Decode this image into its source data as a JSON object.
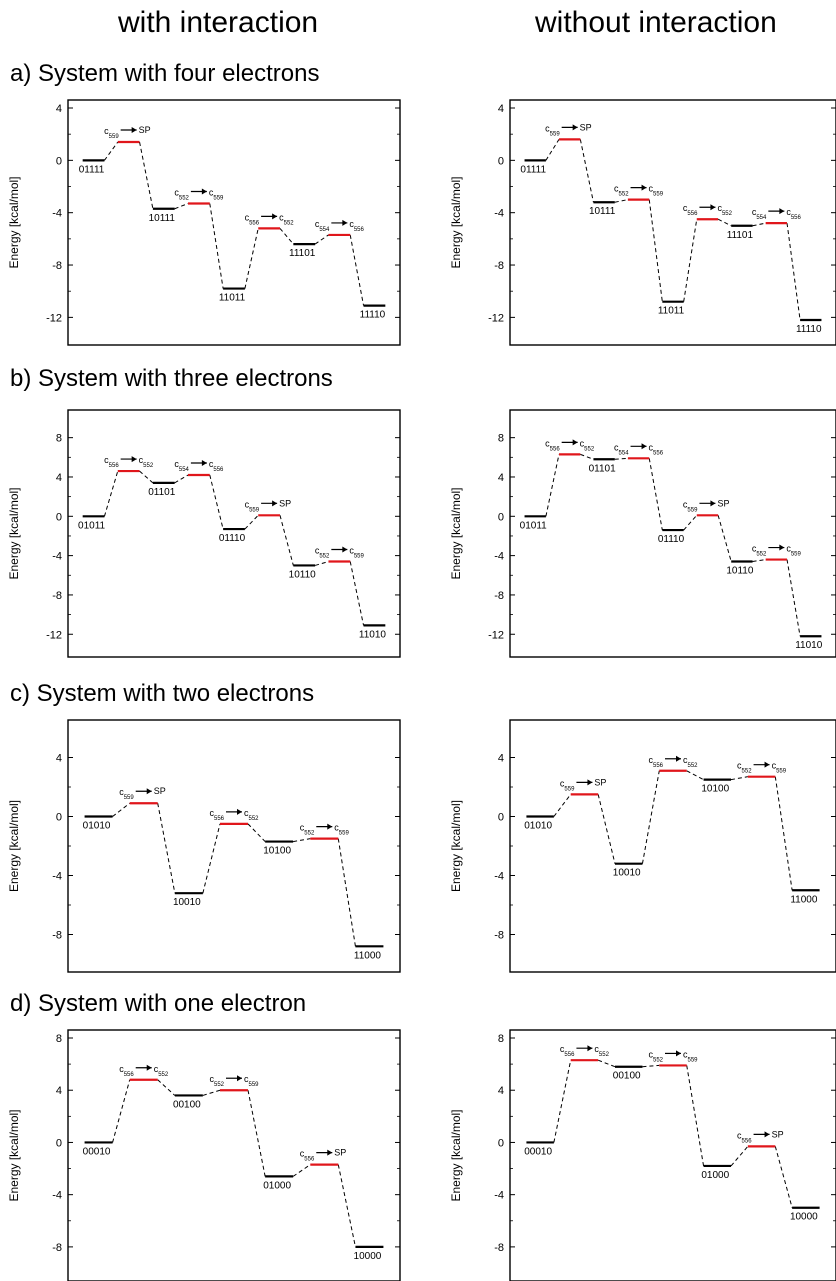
{
  "headers": {
    "left": "with interaction",
    "right": "without interaction"
  },
  "sections": [
    {
      "title": "a) System with four electrons"
    },
    {
      "title": "b) System with three electrons"
    },
    {
      "title": "c) System with two electrons"
    },
    {
      "title": "d) System with one electron"
    }
  ],
  "chart_data": [
    {
      "type": "line",
      "ylabel": "Energy [kcal/mol]",
      "ylim": [
        -13.5,
        4
      ],
      "yticks": [
        4,
        0,
        -4,
        -8,
        -12
      ],
      "minima": [
        {
          "label": "01111",
          "value": 0
        },
        {
          "label": "10111",
          "value": -3.7
        },
        {
          "label": "11011",
          "value": -9.8
        },
        {
          "label": "11101",
          "value": -6.4
        },
        {
          "label": "11110",
          "value": -11.1
        }
      ],
      "transitions": [
        {
          "from_label": "c559",
          "to_label": "SP",
          "value": 1.4
        },
        {
          "from_label": "c552",
          "to_label": "c559",
          "value": -3.3
        },
        {
          "from_label": "c556",
          "to_label": "c552",
          "value": -5.2
        },
        {
          "from_label": "c554",
          "to_label": "c556",
          "value": -5.7
        }
      ]
    },
    {
      "type": "line",
      "ylabel": "Energy [kcal/mol]",
      "ylim": [
        -13.5,
        4
      ],
      "yticks": [
        4,
        0,
        -4,
        -8,
        -12
      ],
      "minima": [
        {
          "label": "01111",
          "value": 0
        },
        {
          "label": "10111",
          "value": -3.2
        },
        {
          "label": "11011",
          "value": -10.8
        },
        {
          "label": "11101",
          "value": -5.0
        },
        {
          "label": "11110",
          "value": -12.2
        }
      ],
      "transitions": [
        {
          "from_label": "c559",
          "to_label": "SP",
          "value": 1.6
        },
        {
          "from_label": "c552",
          "to_label": "c559",
          "value": -3.0
        },
        {
          "from_label": "c556",
          "to_label": "c552",
          "value": -4.5
        },
        {
          "from_label": "c554",
          "to_label": "c556",
          "value": -4.8
        }
      ]
    },
    {
      "type": "line",
      "ylabel": "Energy [kcal/mol]",
      "ylim": [
        -13.5,
        10
      ],
      "yticks": [
        8,
        4,
        0,
        -4,
        -8,
        -12
      ],
      "minima": [
        {
          "label": "01011",
          "value": 0
        },
        {
          "label": "01101",
          "value": 3.4
        },
        {
          "label": "01110",
          "value": -1.3
        },
        {
          "label": "10110",
          "value": -5.0
        },
        {
          "label": "11010",
          "value": -11.1
        }
      ],
      "transitions": [
        {
          "from_label": "c556",
          "to_label": "c552",
          "value": 4.6
        },
        {
          "from_label": "c554",
          "to_label": "c556",
          "value": 4.2
        },
        {
          "from_label": "c559",
          "to_label": "SP",
          "value": 0.1
        },
        {
          "from_label": "c552",
          "to_label": "c559",
          "value": -4.6
        }
      ]
    },
    {
      "type": "line",
      "ylabel": "Energy [kcal/mol]",
      "ylim": [
        -13.5,
        10
      ],
      "yticks": [
        8,
        4,
        0,
        -4,
        -8,
        -12
      ],
      "minima": [
        {
          "label": "01011",
          "value": 0
        },
        {
          "label": "01101",
          "value": 5.8
        },
        {
          "label": "01110",
          "value": -1.4
        },
        {
          "label": "10110",
          "value": -4.6
        },
        {
          "label": "11010",
          "value": -12.2
        }
      ],
      "transitions": [
        {
          "from_label": "c556",
          "to_label": "c552",
          "value": 6.3
        },
        {
          "from_label": "c554",
          "to_label": "c556",
          "value": 5.9
        },
        {
          "from_label": "c559",
          "to_label": "SP",
          "value": 0.1
        },
        {
          "from_label": "c552",
          "to_label": "c559",
          "value": -4.4
        }
      ]
    },
    {
      "type": "line",
      "ylabel": "Energy [kcal/mol]",
      "ylim": [
        -10,
        6
      ],
      "yticks": [
        4,
        0,
        -4,
        -8
      ],
      "minima": [
        {
          "label": "01010",
          "value": 0
        },
        {
          "label": "10010",
          "value": -5.2
        },
        {
          "label": "10100",
          "value": -1.7
        },
        {
          "label": "11000",
          "value": -8.8
        }
      ],
      "transitions": [
        {
          "from_label": "c559",
          "to_label": "SP",
          "value": 0.9
        },
        {
          "from_label": "c556",
          "to_label": "c552",
          "value": -0.5
        },
        {
          "from_label": "c552",
          "to_label": "c559",
          "value": -1.5
        }
      ]
    },
    {
      "type": "line",
      "ylabel": "Energy [kcal/mol]",
      "ylim": [
        -10,
        6
      ],
      "yticks": [
        4,
        0,
        -4,
        -8
      ],
      "minima": [
        {
          "label": "01010",
          "value": 0
        },
        {
          "label": "10010",
          "value": -3.2
        },
        {
          "label": "10100",
          "value": 2.5
        },
        {
          "label": "11000",
          "value": -5.0
        }
      ],
      "transitions": [
        {
          "from_label": "c559",
          "to_label": "SP",
          "value": 1.5
        },
        {
          "from_label": "c556",
          "to_label": "c552",
          "value": 3.1
        },
        {
          "from_label": "c552",
          "to_label": "c559",
          "value": 2.7
        }
      ]
    },
    {
      "type": "line",
      "ylabel": "Energy [kcal/mol]",
      "ylim": [
        -10,
        8
      ],
      "yticks": [
        8,
        4,
        0,
        -4,
        -8
      ],
      "minima": [
        {
          "label": "00010",
          "value": 0
        },
        {
          "label": "00100",
          "value": 3.6
        },
        {
          "label": "01000",
          "value": -2.6
        },
        {
          "label": "10000",
          "value": -8.0
        }
      ],
      "transitions": [
        {
          "from_label": "c556",
          "to_label": "c552",
          "value": 4.8
        },
        {
          "from_label": "c552",
          "to_label": "c559",
          "value": 4.0
        },
        {
          "from_label": "c556",
          "to_label": "SP",
          "value": -1.7
        }
      ]
    },
    {
      "type": "line",
      "ylabel": "Energy [kcal/mol]",
      "ylim": [
        -10,
        8
      ],
      "yticks": [
        8,
        4,
        0,
        -4,
        -8
      ],
      "minima": [
        {
          "label": "00010",
          "value": 0
        },
        {
          "label": "00100",
          "value": 5.8
        },
        {
          "label": "01000",
          "value": -1.8
        },
        {
          "label": "10000",
          "value": -5.0
        }
      ],
      "transitions": [
        {
          "from_label": "c556",
          "to_label": "c552",
          "value": 6.3
        },
        {
          "from_label": "c552",
          "to_label": "c559",
          "value": 5.9
        },
        {
          "from_label": "c556",
          "to_label": "SP",
          "value": -0.3
        }
      ]
    }
  ]
}
